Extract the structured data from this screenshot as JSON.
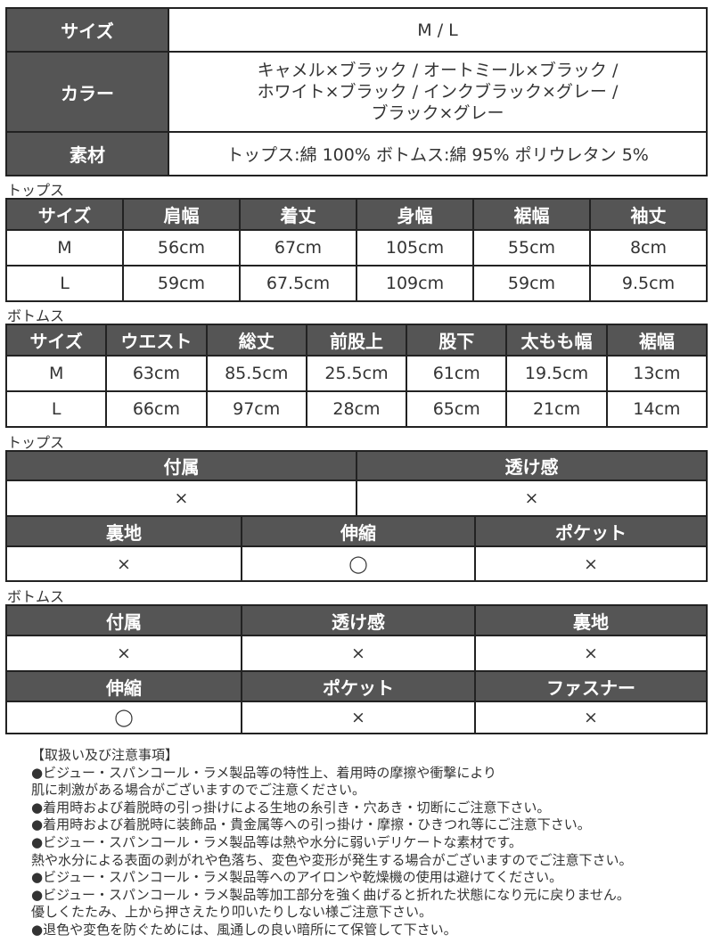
{
  "spec": {
    "size_label": "サイズ",
    "size_value": "M / L",
    "color_label": "カラー",
    "color_lines": [
      "キャメル×ブラック / オートミール×ブラック /",
      "ホワイト×ブラック / インクブラック×グレー /",
      "ブラック×グレー"
    ],
    "material_label": "素材",
    "material_value": "トップス:綿 100%  ボトムス:綿 95% ポリウレタン 5%"
  },
  "tops_size": {
    "title": "トップス",
    "headers": [
      "サイズ",
      "肩幅",
      "着丈",
      "身幅",
      "裾幅",
      "袖丈"
    ],
    "rows": [
      [
        "M",
        "56cm",
        "67cm",
        "105cm",
        "55cm",
        "8cm"
      ],
      [
        "L",
        "59cm",
        "67.5cm",
        "109cm",
        "59cm",
        "9.5cm"
      ]
    ]
  },
  "bottoms_size": {
    "title": "ボトムス",
    "headers": [
      "サイズ",
      "ウエスト",
      "総丈",
      "前股上",
      "股下",
      "太もも幅",
      "裾幅"
    ],
    "rows": [
      [
        "M",
        "63cm",
        "85.5cm",
        "25.5cm",
        "61cm",
        "19.5cm",
        "13cm"
      ],
      [
        "L",
        "66cm",
        "97cm",
        "28cm",
        "65cm",
        "21cm",
        "14cm"
      ]
    ]
  },
  "tops_attr": {
    "title": "トップス",
    "row1_headers": [
      "付属",
      "透け感"
    ],
    "row1_values": [
      "×",
      "×"
    ],
    "row2_headers": [
      "裏地",
      "伸縮",
      "ポケット"
    ],
    "row2_values": [
      "×",
      "◯",
      "×"
    ]
  },
  "bottoms_attr": {
    "title": "ボトムス",
    "row1_headers": [
      "付属",
      "透け感",
      "裏地"
    ],
    "row1_values": [
      "×",
      "×",
      "×"
    ],
    "row2_headers": [
      "伸縮",
      "ポケット",
      "ファスナー"
    ],
    "row2_values": [
      "◯",
      "×",
      "×"
    ]
  },
  "notes": [
    "【取扱い及び注意事項】",
    "●ビジュー・スパンコール・ラメ製品等の特性上、着用時の摩擦や衝撃により",
    "肌に刺激がある場合がございますのでご注意ください。",
    "●着用時および着脱時の引っ掛けによる生地の糸引き・穴あき・切断にご注意下さい。",
    "●着用時および着脱時に装飾品・貴金属等への引っ掛け・摩擦・ひきつれ等にご注意下さい。",
    "●ビジュー・スパンコール・ラメ製品等は熱や水分に弱いデリケートな素材です。",
    "熱や水分による表面の剥がれや色落ち、変色や変形が発生する場合がございますのでご注意下さい。",
    "●ビジュー・スパンコール・ラメ製品等へのアイロンや乾燥機の使用は避けてください。",
    "●ビジュー・スパンコール・ラメ製品等加工部分を強く曲げると折れた状態になり元に戻りません。",
    "優しくたたみ、上から押さえたり叩いたりしない様ご注意下さい。",
    "●退色や変色を防ぐためには、風通しの良い暗所にて保管して下さい。"
  ]
}
